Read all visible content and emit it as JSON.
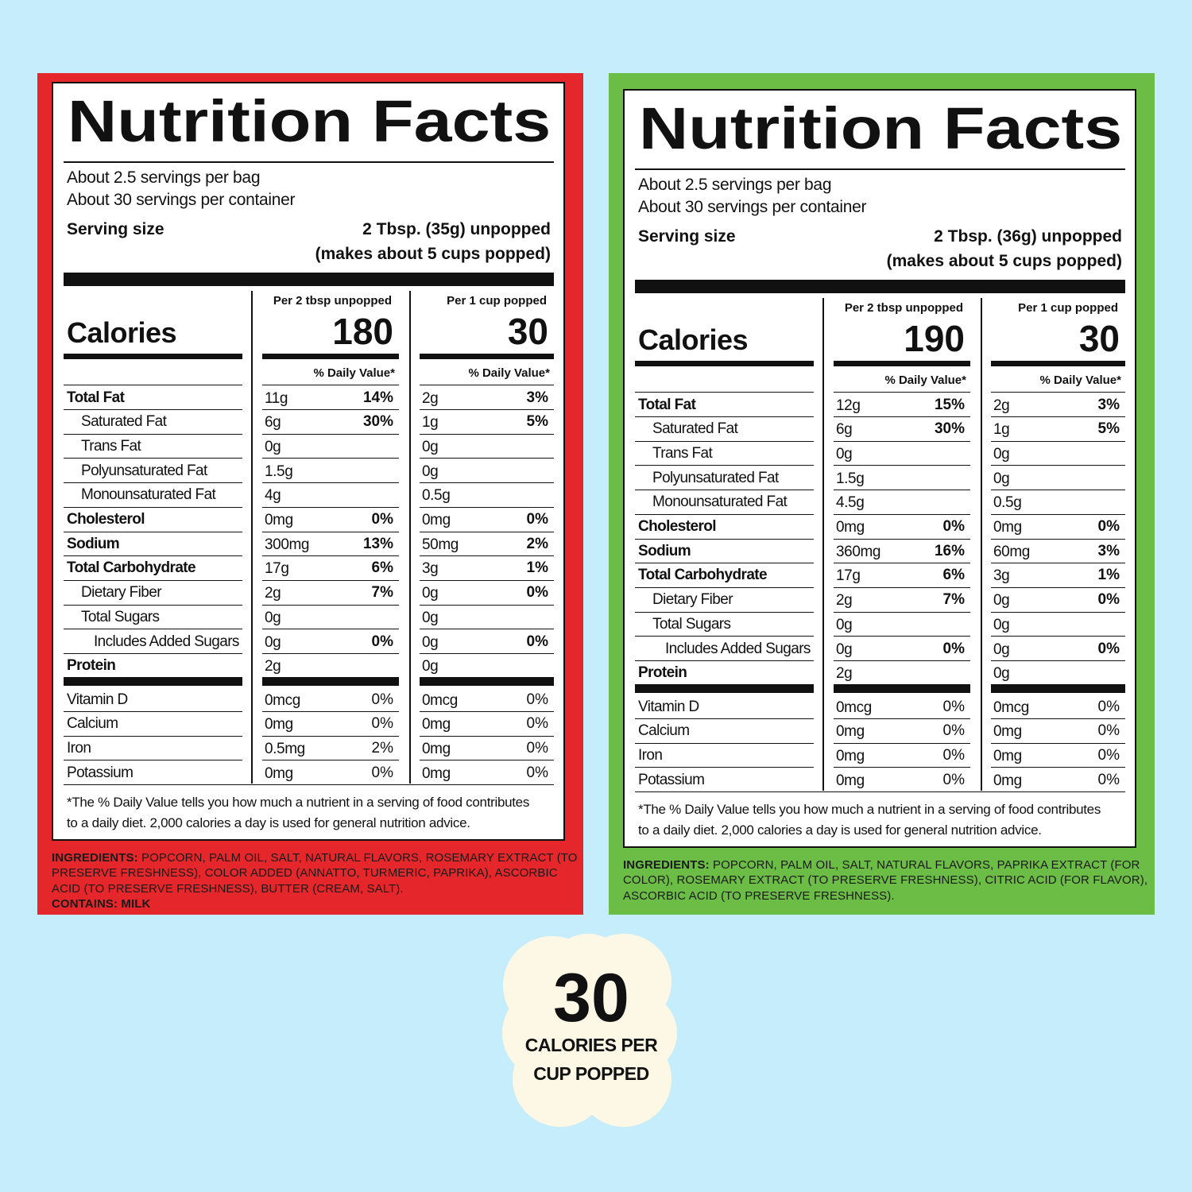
{
  "labels": [
    {
      "color": "#e5262b",
      "title": "Nutrition Facts",
      "servings": [
        "About 2.5 servings per bag",
        "About 30 servings per container"
      ],
      "serving_size_label": "Serving size",
      "serving_size": [
        "2 Tbsp. (35g) unpopped",
        "(makes about 5 cups popped)"
      ],
      "calories_label": "Calories",
      "columns": [
        {
          "heading": "Per 2 tbsp unpopped",
          "calories": 180,
          "dv_heading": "% Daily Value*"
        },
        {
          "heading": "Per 1 cup popped",
          "calories": 30,
          "dv_heading": "% Daily Value*"
        }
      ],
      "rows": [
        {
          "name": "Total Fat",
          "indent": 0,
          "cells": [
            [
              "11g",
              "14%"
            ],
            [
              "2g",
              "3%"
            ]
          ]
        },
        {
          "name": "Saturated Fat",
          "indent": 1,
          "cells": [
            [
              "6g",
              "30%"
            ],
            [
              "1g",
              "5%"
            ]
          ]
        },
        {
          "name": "Trans Fat",
          "indent": 1,
          "cells": [
            [
              "0g"
            ],
            [
              "0g"
            ]
          ]
        },
        {
          "name": "Polyunsaturated Fat",
          "indent": 1,
          "cells": [
            [
              "1.5g"
            ],
            [
              "0g"
            ]
          ]
        },
        {
          "name": "Monounsaturated Fat",
          "indent": 1,
          "cells": [
            [
              "4g"
            ],
            [
              "0.5g"
            ]
          ]
        },
        {
          "name": "Cholesterol",
          "indent": 0,
          "cells": [
            [
              "0mg",
              "0%"
            ],
            [
              "0mg",
              "0%"
            ]
          ]
        },
        {
          "name": "Sodium",
          "indent": 0,
          "cells": [
            [
              "300mg",
              "13%"
            ],
            [
              "50mg",
              "2%"
            ]
          ]
        },
        {
          "name": "Total Carbohydrate",
          "indent": 0,
          "cells": [
            [
              "17g",
              "6%"
            ],
            [
              "3g",
              "1%"
            ]
          ]
        },
        {
          "name": "Dietary Fiber",
          "indent": 1,
          "cells": [
            [
              "2g",
              "7%"
            ],
            [
              "0g",
              "0%"
            ]
          ]
        },
        {
          "name": "Total Sugars",
          "indent": 1,
          "cells": [
            [
              "0g"
            ],
            [
              "0g"
            ]
          ]
        },
        {
          "name": "Includes Added Sugars",
          "indent": 2,
          "cells": [
            [
              "0g",
              "0%"
            ],
            [
              "0g",
              "0%"
            ]
          ]
        },
        {
          "name": "Protein",
          "indent": 0,
          "cells": [
            [
              "2g"
            ],
            [
              "0g"
            ]
          ]
        }
      ],
      "vitamins": [
        {
          "name": "Vitamin D",
          "cells": [
            [
              "0mcg",
              "0%"
            ],
            [
              "0mcg",
              "0%"
            ]
          ]
        },
        {
          "name": "Calcium",
          "cells": [
            [
              "0mg",
              "0%"
            ],
            [
              "0mg",
              "0%"
            ]
          ]
        },
        {
          "name": "Iron",
          "cells": [
            [
              "0.5mg",
              "2%"
            ],
            [
              "0mg",
              "0%"
            ]
          ]
        },
        {
          "name": "Potassium",
          "cells": [
            [
              "0mg",
              "0%"
            ],
            [
              "0mg",
              "0%"
            ]
          ]
        }
      ],
      "footnote": [
        "*The % Daily Value tells you how much a nutrient in a serving of food contributes",
        "to a daily diet. 2,000 calories a day is used for general nutrition advice."
      ],
      "ingredients_label": "INGREDIENTS:",
      "ingredients": "POPCORN, PALM OIL, SALT, NATURAL FLAVORS, ROSEMARY EXTRACT (TO PRESERVE FRESHNESS), COLOR ADDED (ANNATTO, TURMERIC, PAPRIKA), ASCORBIC ACID (TO PRESERVE FRESHNESS), BUTTER (CREAM, SALT).",
      "contains_label": "CONTAINS:",
      "contains": "MILK"
    },
    {
      "color": "#6cbd45",
      "title": "Nutrition Facts",
      "servings": [
        "About 2.5 servings per bag",
        "About 30 servings per container"
      ],
      "serving_size_label": "Serving size",
      "serving_size": [
        "2 Tbsp. (36g) unpopped",
        "(makes about 5 cups popped)"
      ],
      "calories_label": "Calories",
      "columns": [
        {
          "heading": "Per 2 tbsp unpopped",
          "calories": 190,
          "dv_heading": "% Daily Value*"
        },
        {
          "heading": "Per 1 cup popped",
          "calories": 30,
          "dv_heading": "% Daily Value*"
        }
      ],
      "rows": [
        {
          "name": "Total Fat",
          "indent": 0,
          "cells": [
            [
              "12g",
              "15%"
            ],
            [
              "2g",
              "3%"
            ]
          ]
        },
        {
          "name": "Saturated Fat",
          "indent": 1,
          "cells": [
            [
              "6g",
              "30%"
            ],
            [
              "1g",
              "5%"
            ]
          ]
        },
        {
          "name": "Trans Fat",
          "indent": 1,
          "cells": [
            [
              "0g"
            ],
            [
              "0g"
            ]
          ]
        },
        {
          "name": "Polyunsaturated Fat",
          "indent": 1,
          "cells": [
            [
              "1.5g"
            ],
            [
              "0g"
            ]
          ]
        },
        {
          "name": "Monounsaturated Fat",
          "indent": 1,
          "cells": [
            [
              "4.5g"
            ],
            [
              "0.5g"
            ]
          ]
        },
        {
          "name": "Cholesterol",
          "indent": 0,
          "cells": [
            [
              "0mg",
              "0%"
            ],
            [
              "0mg",
              "0%"
            ]
          ]
        },
        {
          "name": "Sodium",
          "indent": 0,
          "cells": [
            [
              "360mg",
              "16%"
            ],
            [
              "60mg",
              "3%"
            ]
          ]
        },
        {
          "name": "Total Carbohydrate",
          "indent": 0,
          "cells": [
            [
              "17g",
              "6%"
            ],
            [
              "3g",
              "1%"
            ]
          ]
        },
        {
          "name": "Dietary Fiber",
          "indent": 1,
          "cells": [
            [
              "2g",
              "7%"
            ],
            [
              "0g",
              "0%"
            ]
          ]
        },
        {
          "name": "Total Sugars",
          "indent": 1,
          "cells": [
            [
              "0g"
            ],
            [
              "0g"
            ]
          ]
        },
        {
          "name": "Includes Added Sugars",
          "indent": 2,
          "cells": [
            [
              "0g",
              "0%"
            ],
            [
              "0g",
              "0%"
            ]
          ]
        },
        {
          "name": "Protein",
          "indent": 0,
          "cells": [
            [
              "2g"
            ],
            [
              "0g"
            ]
          ]
        }
      ],
      "vitamins": [
        {
          "name": "Vitamin D",
          "cells": [
            [
              "0mcg",
              "0%"
            ],
            [
              "0mcg",
              "0%"
            ]
          ]
        },
        {
          "name": "Calcium",
          "cells": [
            [
              "0mg",
              "0%"
            ],
            [
              "0mg",
              "0%"
            ]
          ]
        },
        {
          "name": "Iron",
          "cells": [
            [
              "0mg",
              "0%"
            ],
            [
              "0mg",
              "0%"
            ]
          ]
        },
        {
          "name": "Potassium",
          "cells": [
            [
              "0mg",
              "0%"
            ],
            [
              "0mg",
              "0%"
            ]
          ]
        }
      ],
      "footnote": [
        "*The % Daily Value tells you how much a nutrient in a serving of food contributes",
        "to a daily diet. 2,000 calories a day is used for general nutrition advice."
      ],
      "ingredients_label": "INGREDIENTS:",
      "ingredients": "POPCORN, PALM OIL, SALT, NATURAL FLAVORS, PAPRIKA EXTRACT (FOR COLOR), ROSEMARY EXTRACT (TO PRESERVE FRESHNESS), CITRIC ACID (FOR FLAVOR), ASCORBIC ACID (TO PRESERVE FRESHNESS)."
    }
  ],
  "badge": {
    "number": 30,
    "text": [
      "CALORIES PER",
      "CUP POPPED"
    ]
  }
}
